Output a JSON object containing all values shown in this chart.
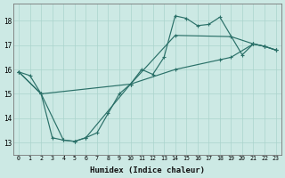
{
  "xlabel": "Humidex (Indice chaleur)",
  "bg_color": "#cce9e4",
  "grid_color": "#aad4cc",
  "line_color": "#2a7068",
  "xlim": [
    -0.5,
    23.5
  ],
  "ylim": [
    12.5,
    18.7
  ],
  "xticks": [
    0,
    1,
    2,
    3,
    4,
    5,
    6,
    7,
    8,
    9,
    10,
    11,
    12,
    13,
    14,
    15,
    16,
    17,
    18,
    19,
    20,
    21,
    22,
    23
  ],
  "yticks": [
    13,
    14,
    15,
    16,
    17,
    18
  ],
  "line1_x": [
    0,
    1,
    2,
    3,
    4,
    5,
    6,
    7,
    8,
    9,
    10,
    11,
    12,
    13,
    14,
    15,
    16,
    17,
    18,
    20,
    21,
    22,
    23
  ],
  "line1_y": [
    15.9,
    15.75,
    15.0,
    13.2,
    13.1,
    13.05,
    13.2,
    13.4,
    14.2,
    15.0,
    15.4,
    16.0,
    15.8,
    16.5,
    18.2,
    18.1,
    17.8,
    17.85,
    18.15,
    16.6,
    17.05,
    16.95,
    16.8
  ],
  "line2_x": [
    0,
    2,
    4,
    5,
    6,
    10,
    14,
    19,
    21,
    22,
    23
  ],
  "line2_y": [
    15.9,
    15.0,
    13.1,
    13.05,
    13.2,
    15.4,
    17.4,
    17.35,
    17.05,
    16.95,
    16.8
  ],
  "line3_x": [
    0,
    2,
    10,
    14,
    18,
    19,
    21,
    22,
    23
  ],
  "line3_y": [
    15.9,
    15.0,
    15.4,
    16.0,
    16.4,
    16.5,
    17.05,
    16.95,
    16.8
  ]
}
